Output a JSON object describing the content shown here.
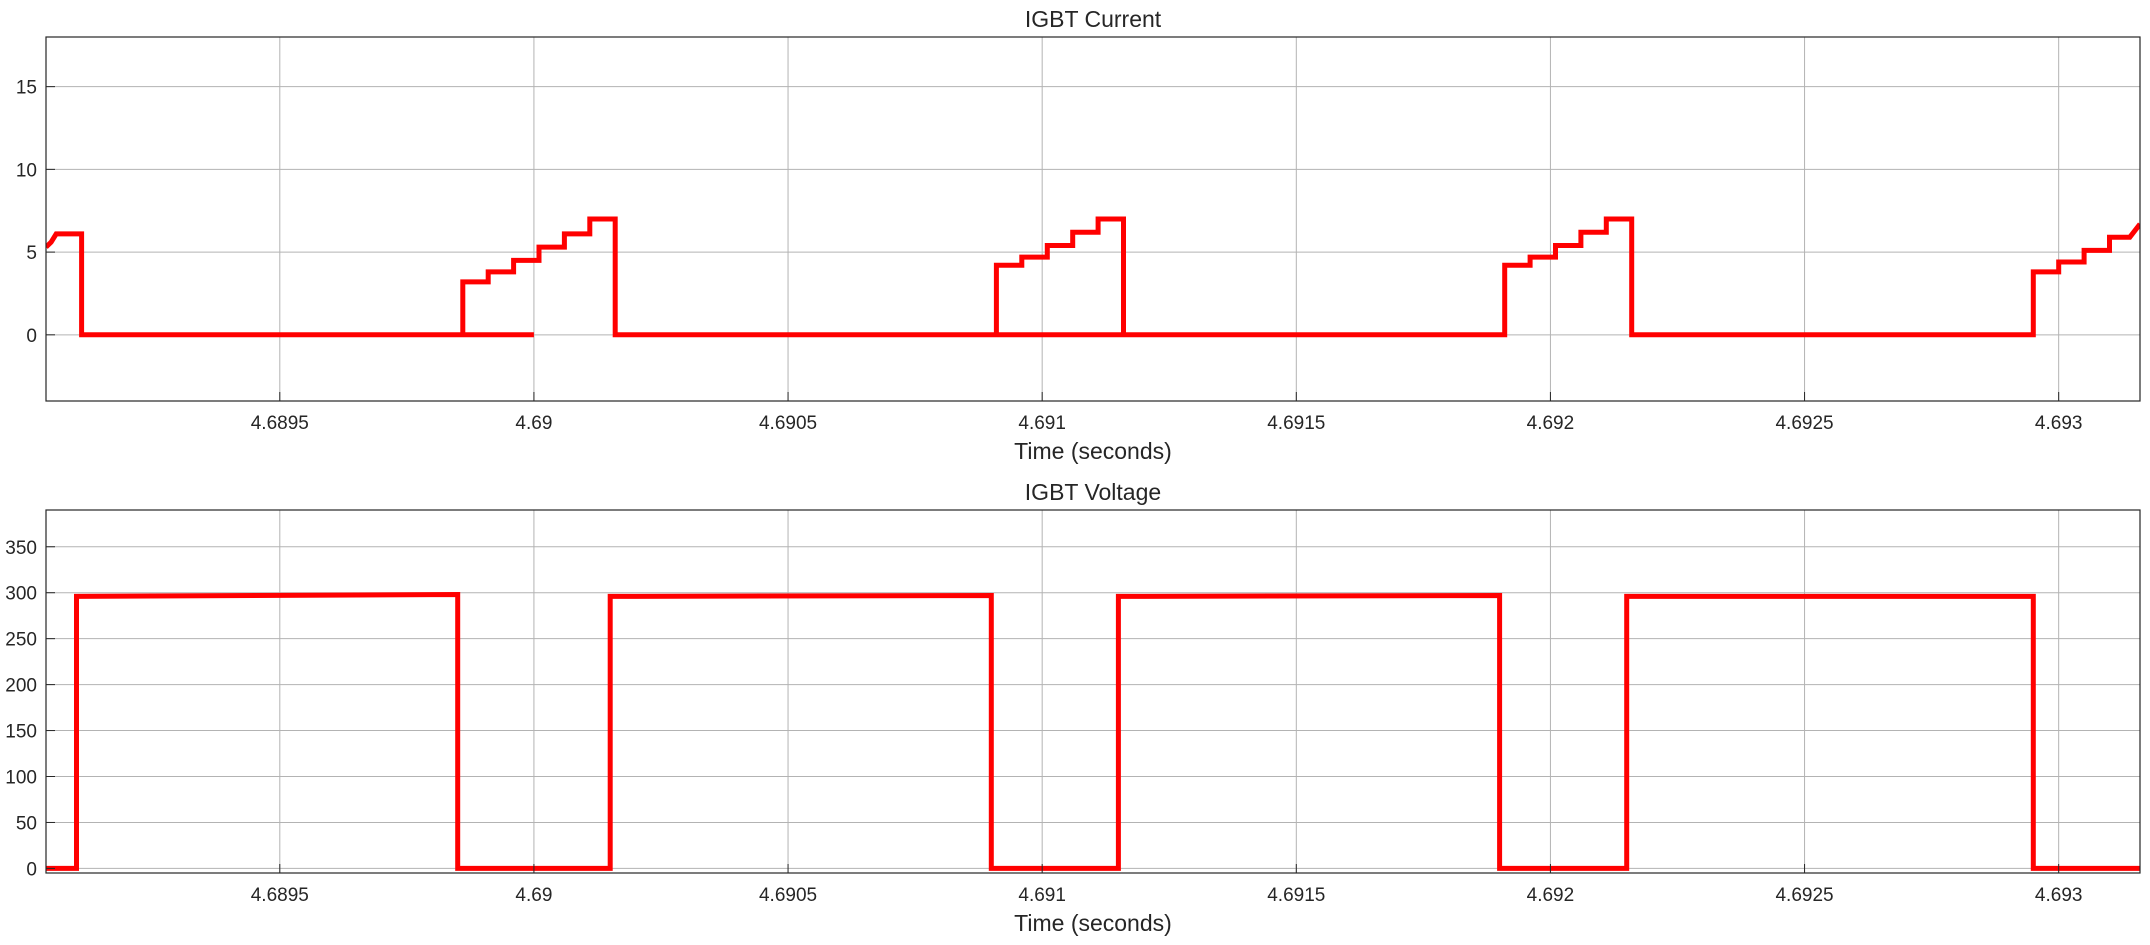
{
  "chart_data": [
    {
      "type": "line",
      "title": "IGBT Current",
      "xlabel": "Time (seconds)",
      "ylabel": "",
      "xlim": [
        4.68904,
        4.69316
      ],
      "ylim": [
        -4,
        18
      ],
      "xticks": [
        4.6895,
        4.69,
        4.6905,
        4.691,
        4.6915,
        4.692,
        4.6925,
        4.693
      ],
      "xtick_labels": [
        "4.6895",
        "4.69",
        "4.6905",
        "4.691",
        "4.6915",
        "4.692",
        "4.6925",
        "4.693"
      ],
      "yticks": [
        0,
        5,
        10,
        15
      ],
      "ytick_labels": [
        "0",
        "5",
        "10",
        "15"
      ],
      "grid": true,
      "legend": "none",
      "series": [
        {
          "color": "#ff0000",
          "x": [
            4.68904,
            4.68905,
            4.68906,
            4.68911,
            4.68911,
            4.69,
            4.68986,
            4.68986,
            4.68991,
            4.68991,
            4.68996,
            4.68996,
            4.69001,
            4.69001,
            4.69006,
            4.69006,
            4.69011,
            4.69011,
            4.69016,
            4.69016,
            4.69016,
            4.69162,
            4.69091,
            4.69091,
            4.69096,
            4.69096,
            4.69101,
            4.69101,
            4.69106,
            4.69106,
            4.69111,
            4.69111,
            4.69116,
            4.69116,
            4.69116,
            4.69191,
            4.69191,
            4.69196,
            4.69196,
            4.69201,
            4.69201,
            4.69206,
            4.69206,
            4.69211,
            4.69211,
            4.69216,
            4.69216,
            4.69216,
            4.69295,
            4.69295,
            4.693,
            4.693,
            4.69305,
            4.69305,
            4.6931,
            4.6931,
            4.69314,
            4.69316
          ],
          "y": [
            5.3,
            5.6,
            6.1,
            6.1,
            0,
            0,
            0,
            3.2,
            3.2,
            3.8,
            3.8,
            4.5,
            4.5,
            5.3,
            5.3,
            6.1,
            6.1,
            7.0,
            7.0,
            7.0,
            0,
            0,
            0,
            4.2,
            4.2,
            4.7,
            4.7,
            5.4,
            5.4,
            6.2,
            6.2,
            7.0,
            7.0,
            7.0,
            0,
            0,
            4.2,
            4.2,
            4.7,
            4.7,
            5.4,
            5.4,
            6.2,
            6.2,
            7.0,
            7.0,
            7.0,
            0,
            0,
            3.8,
            3.8,
            4.4,
            4.4,
            5.1,
            5.1,
            5.9,
            5.9,
            6.7
          ]
        }
      ]
    },
    {
      "type": "line",
      "title": "IGBT Voltage",
      "xlabel": "Time (seconds)",
      "ylabel": "",
      "xlim": [
        4.68904,
        4.69316
      ],
      "ylim": [
        -5,
        390
      ],
      "xticks": [
        4.6895,
        4.69,
        4.6905,
        4.691,
        4.6915,
        4.692,
        4.6925,
        4.693
      ],
      "xtick_labels": [
        "4.6895",
        "4.69",
        "4.6905",
        "4.691",
        "4.6915",
        "4.692",
        "4.6925",
        "4.693"
      ],
      "yticks": [
        0,
        50,
        100,
        150,
        200,
        250,
        300,
        350
      ],
      "ytick_labels": [
        "0",
        "50",
        "100",
        "150",
        "200",
        "250",
        "300",
        "350"
      ],
      "grid": true,
      "legend": "none",
      "series": [
        {
          "color": "#ff0000",
          "x": [
            4.68904,
            4.6891,
            4.6891,
            4.68985,
            4.68985,
            4.69015,
            4.69015,
            4.6909,
            4.6909,
            4.69115,
            4.69115,
            4.6919,
            4.6919,
            4.69215,
            4.69215,
            4.69295,
            4.69295,
            4.69316
          ],
          "y": [
            0,
            0,
            296,
            298,
            0,
            0,
            296,
            297,
            0,
            0,
            296,
            297,
            0,
            0,
            296,
            296,
            0,
            0
          ]
        }
      ]
    }
  ]
}
